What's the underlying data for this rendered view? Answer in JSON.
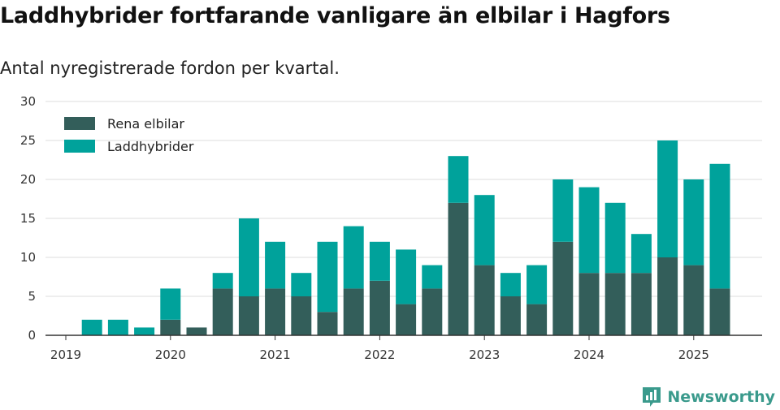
{
  "header": {
    "title": "Laddhybrider fortfarande vanligare än elbilar i Hagfors",
    "subtitle": "Antal nyregistrerade fordon per kvartal."
  },
  "brand": {
    "name": "Newsworthy",
    "icon": "newsworthy-logo-icon",
    "color": "#3a9a8c"
  },
  "chart_data": {
    "type": "bar",
    "stacked": true,
    "categories": [
      "2019-Q1",
      "2019-Q2",
      "2019-Q3",
      "2019-Q4",
      "2020-Q1",
      "2020-Q2",
      "2020-Q3",
      "2020-Q4",
      "2021-Q1",
      "2021-Q2",
      "2021-Q3",
      "2021-Q4",
      "2022-Q1",
      "2022-Q2",
      "2022-Q3",
      "2022-Q4",
      "2023-Q1",
      "2023-Q2",
      "2023-Q3",
      "2023-Q4",
      "2024-Q1",
      "2024-Q2",
      "2024-Q3",
      "2024-Q4",
      "2025-Q1",
      "2025-Q2"
    ],
    "series": [
      {
        "name": "Rena elbilar",
        "color": "#335e5a",
        "values": [
          0,
          0,
          0,
          0,
          2,
          1,
          6,
          5,
          6,
          5,
          3,
          6,
          7,
          4,
          6,
          17,
          9,
          5,
          4,
          12,
          8,
          8,
          8,
          10,
          9,
          6
        ]
      },
      {
        "name": "Laddhybrider",
        "color": "#00a29b",
        "values": [
          0,
          2,
          2,
          1,
          4,
          0,
          2,
          10,
          6,
          3,
          9,
          8,
          5,
          7,
          3,
          6,
          9,
          3,
          5,
          8,
          11,
          9,
          5,
          15,
          11,
          16
        ]
      }
    ],
    "x_tick_labels": [
      "2019",
      "2020",
      "2021",
      "2022",
      "2023",
      "2024",
      "2025"
    ],
    "y_ticks": [
      0,
      5,
      10,
      15,
      20,
      25,
      30
    ],
    "ylim": [
      0,
      30
    ],
    "grid": true,
    "legend_position": "top-left"
  }
}
